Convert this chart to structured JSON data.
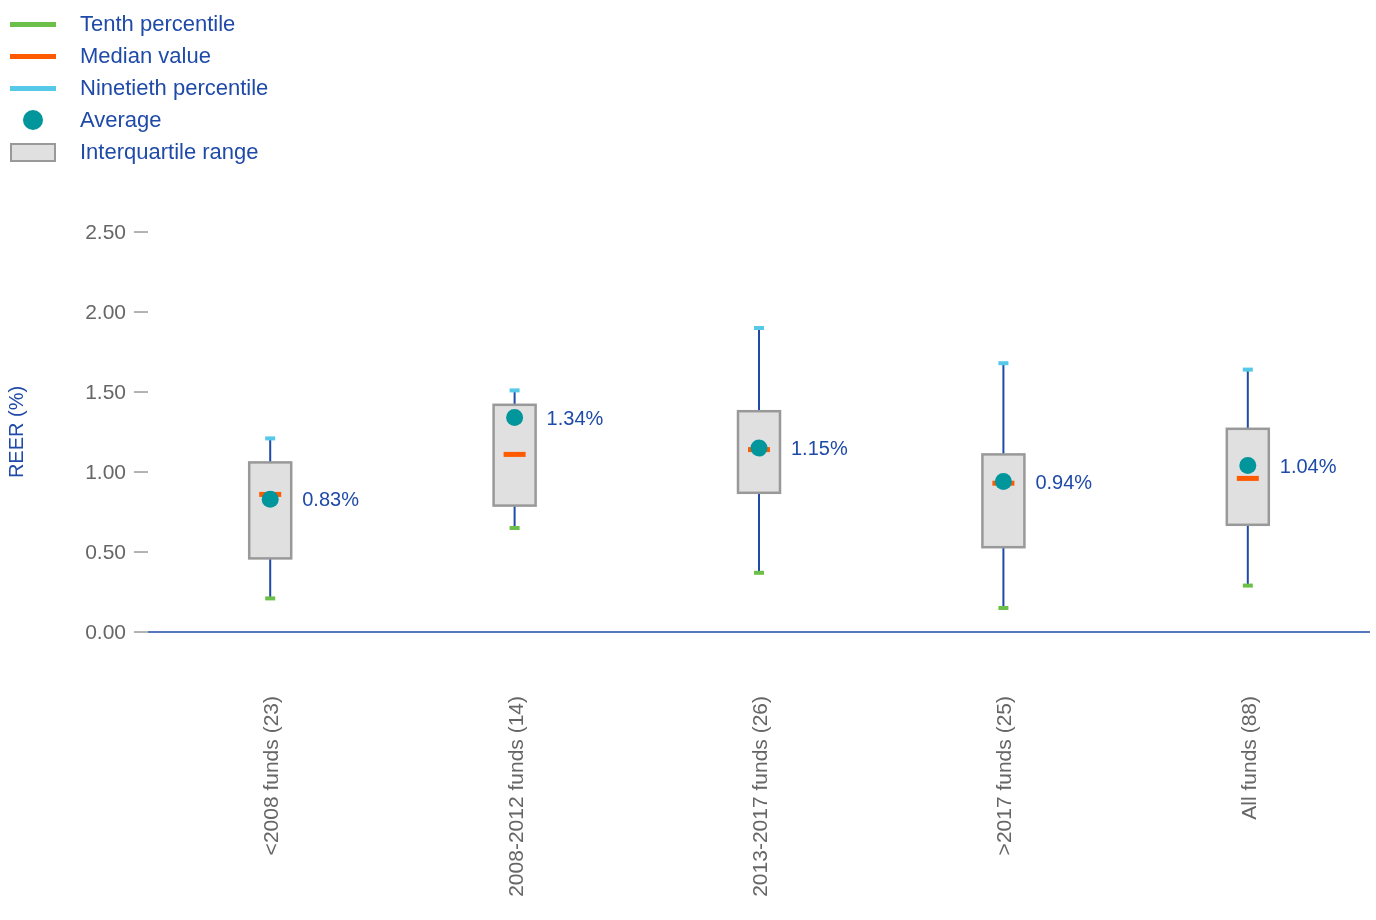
{
  "chart_data": {
    "type": "box",
    "ylabel": "REER (%)",
    "categories": [
      "<2008 funds (23)",
      "2008-2012 funds (14)",
      "2013-2017 funds (26)",
      ">2017 funds (25)",
      "All funds (88)"
    ],
    "ylim": [
      0,
      2.5
    ],
    "yticks": [
      {
        "value": 0,
        "label": "0.00"
      },
      {
        "value": 0.5,
        "label": "0.50"
      },
      {
        "value": 1,
        "label": "1.00"
      },
      {
        "value": 1.5,
        "label": "1.50"
      },
      {
        "value": 2,
        "label": "2.00"
      },
      {
        "value": 2.5,
        "label": "2.50"
      }
    ],
    "legend": "top left",
    "annotations": [
      "Tenth percentile",
      "Median value",
      "Ninetieth percentile",
      "Average",
      "0.83%",
      "1.34%",
      "1.15%",
      "0.94%",
      "1.04%"
    ],
    "series": [
      {
        "name": "Interquartile range",
        "color": "#e0e0e0",
        "boxes": [
          {
            "low": 0.21,
            "q1": 0.46,
            "median": 0.86,
            "q3": 1.06,
            "high": 1.21,
            "mean": 0.83
          },
          {
            "low": 0.65,
            "q1": 0.79,
            "median": 1.11,
            "q3": 1.42,
            "high": 1.51,
            "mean": 1.34
          },
          {
            "low": 0.37,
            "q1": 0.87,
            "median": 1.14,
            "q3": 1.38,
            "high": 1.9,
            "mean": 1.15
          },
          {
            "low": 0.15,
            "q1": 0.53,
            "median": 0.93,
            "q3": 1.11,
            "high": 1.68,
            "mean": 0.94
          },
          {
            "low": 0.29,
            "q1": 0.67,
            "median": 0.96,
            "q3": 1.27,
            "high": 1.64,
            "mean": 1.04
          }
        ]
      }
    ]
  }
}
